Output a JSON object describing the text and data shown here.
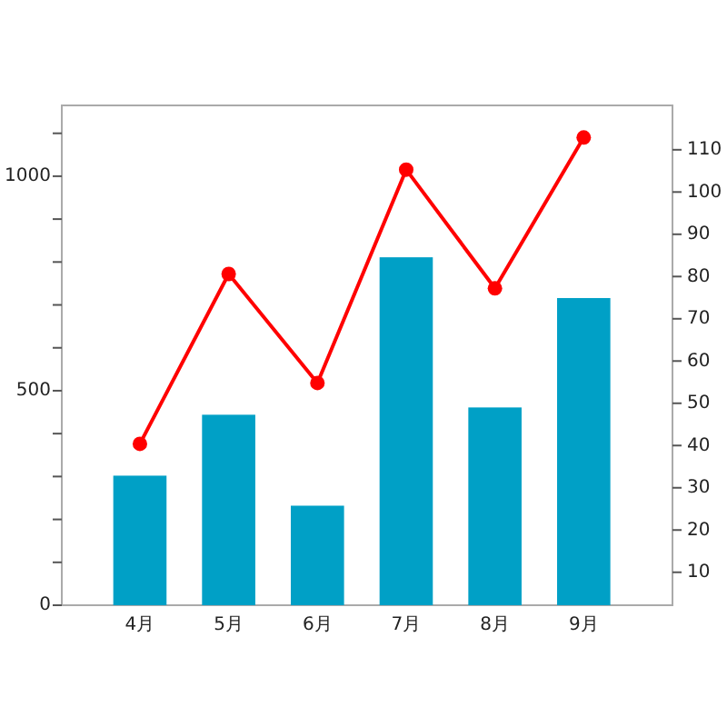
{
  "chart_data": {
    "type": "bar",
    "categories": [
      "4月",
      "5月",
      "6月",
      "7月",
      "8月",
      "9月"
    ],
    "series": [
      {
        "color": "#00a0c6",
        "values": [
          302,
          444,
          232,
          811,
          461,
          716
        ]
      },
      {
        "type": "line",
        "axis": "y2",
        "color": "#ff0000",
        "marker": "circle",
        "values": [
          40.4,
          80.6,
          54.8,
          105.3,
          77.2,
          112.9
        ]
      }
    ],
    "ylim": [
      0,
      1165
    ],
    "yticks": [
      0,
      {
        "value": 100,
        "label": null
      },
      {
        "value": 200,
        "label": null
      },
      {
        "value": 300,
        "label": null
      },
      {
        "value": 400,
        "label": null
      },
      500,
      {
        "value": 600,
        "label": null
      },
      {
        "value": 700,
        "label": null
      },
      {
        "value": 800,
        "label": null
      },
      {
        "value": 900,
        "label": null
      },
      1000,
      {
        "value": 1100,
        "label": null
      }
    ],
    "y2lim": [
      2.2,
      120.5
    ],
    "y2ticks": [
      10,
      20,
      30,
      40,
      50,
      60,
      70,
      80,
      90,
      100,
      110
    ]
  }
}
